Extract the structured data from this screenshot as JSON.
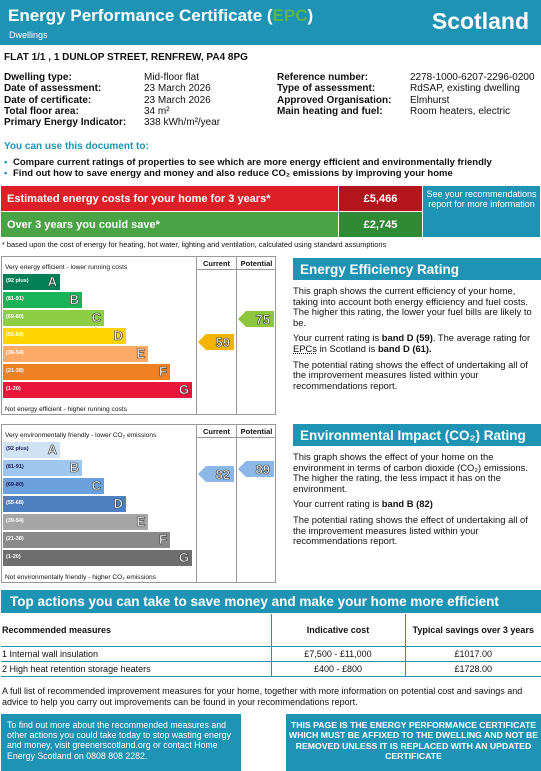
{
  "header": {
    "title_pre": "Energy Performance Certificate (",
    "title_epc": "EPC",
    "title_post": ")",
    "subtitle": "Dwellings",
    "country": "Scotland"
  },
  "address": "FLAT 1/1 , 1 DUNLOP STREET, RENFREW, PA4 8PG",
  "details_left": [
    {
      "label": "Dwelling type:",
      "value": "Mid-floor flat"
    },
    {
      "label": "Date of assessment:",
      "value": "23 March 2026"
    },
    {
      "label": "Date of certificate:",
      "value": "23 March 2026"
    },
    {
      "label": "Total floor area:",
      "value": "34 m²"
    },
    {
      "label": "Primary Energy Indicator:",
      "value": "338 kWh/m²/year"
    }
  ],
  "details_right": [
    {
      "label": "Reference number:",
      "value": "2278-1000-6207-2296-0200"
    },
    {
      "label": "Type of assessment:",
      "value": "RdSAP, existing dwelling"
    },
    {
      "label": "Approved Organisation:",
      "value": "Elmhurst"
    },
    {
      "label": "Main heating and fuel:",
      "value": "Room heaters, electric"
    }
  ],
  "use_doc": {
    "heading": "You can use this document to:",
    "bullets": [
      "Compare current ratings of properties to see which are more energy efficient and environmentally friendly",
      "Find out how to save energy and money and also reduce CO₂ emissions by improving your home"
    ]
  },
  "costs": {
    "estimated_label": "Estimated energy costs for your home for 3 years*",
    "estimated_value": "£5,466",
    "save_label": "Over 3 years you could save*",
    "save_value": "£2,745",
    "see_box": "See your recommendations report for more information",
    "footnote": "* based upon the cost of energy for heating, hot water, lighting and ventilation, calculated using standard assumptions"
  },
  "ee_chart": {
    "top_label": "Very energy efficient - lower running costs",
    "bottom_label": "Not energy efficient - higher running costs",
    "col_current": "Current",
    "col_potential": "Potential",
    "current": "59",
    "potential": "75",
    "current_color": "#f5b400",
    "potential_color": "#8dc63f",
    "bands": [
      {
        "range": "(92 plus)",
        "letter": "A",
        "color": "#008054"
      },
      {
        "range": "(81-91)",
        "letter": "B",
        "color": "#19b459"
      },
      {
        "range": "(69-80)",
        "letter": "C",
        "color": "#8dce46"
      },
      {
        "range": "(55-68)",
        "letter": "D",
        "color": "#ffd500"
      },
      {
        "range": "(39-54)",
        "letter": "E",
        "color": "#fcaa65"
      },
      {
        "range": "(21-38)",
        "letter": "F",
        "color": "#ef8023"
      },
      {
        "range": "(1-20)",
        "letter": "G",
        "color": "#e9153b"
      }
    ]
  },
  "ei_chart": {
    "top_label": "Very environmentally friendly - lower CO₂ emissions",
    "bottom_label": "Not environmentally friendly - higher CO₂ emissions",
    "col_current": "Current",
    "col_potential": "Potential",
    "current": "82",
    "potential": "89",
    "current_color": "#8bb8e6",
    "potential_color": "#8bb8e6",
    "bands": [
      {
        "range": "(92 plus)",
        "letter": "A",
        "color": "#cfe3f5"
      },
      {
        "range": "(81-91)",
        "letter": "B",
        "color": "#9fc6ee"
      },
      {
        "range": "(69-80)",
        "letter": "C",
        "color": "#6aa0db"
      },
      {
        "range": "(55-68)",
        "letter": "D",
        "color": "#4f7fc0"
      },
      {
        "range": "(39-54)",
        "letter": "E",
        "color": "#a6a6a6"
      },
      {
        "range": "(21-38)",
        "letter": "F",
        "color": "#8a8a8a"
      },
      {
        "range": "(1-20)",
        "letter": "G",
        "color": "#6e6e6e"
      }
    ]
  },
  "ee_panel": {
    "heading": "Energy Efficiency Rating",
    "p1": "This graph shows the current efficiency of your home, taking into account both energy efficiency and fuel costs. The higher this rating, the lower your fuel bills are likely to be.",
    "p2_pre": "Your current rating is ",
    "p2_bold1": "band D (59)",
    "p2_mid": ". The average rating for ",
    "p2_epcs": "EPCs",
    "p2_mid2": " in Scotland is ",
    "p2_bold2": "band D (61).",
    "p3": "The potential rating shows the effect of undertaking all of the improvement measures listed within your recommendations report."
  },
  "ei_panel": {
    "heading": "Environmental Impact (CO₂) Rating",
    "p1": "This graph shows the effect of your home on the environment in terms of carbon dioxide (CO₂) emissions. The higher the rating, the less impact it has on the environment.",
    "p2_pre": "Your current rating is ",
    "p2_bold": "band B (82)",
    "p3": "The potential rating shows the effect of undertaking all of the improvement measures listed within your recommendations report."
  },
  "top_actions": {
    "heading": "Top actions you can take to save money and make your home more efficient",
    "col_measures": "Recommended measures",
    "col_cost": "Indicative cost",
    "col_savings": "Typical savings over 3 years",
    "rows": [
      {
        "measure": "1 Internal wall insulation",
        "cost": "£7,500 - £11,000",
        "savings": "£1017.00"
      },
      {
        "measure": "2 High heat retention storage heaters",
        "cost": "£400 - £800",
        "savings": "£1728.00"
      }
    ],
    "full_list": "A full list of recommended improvement measures for your home, together with more information on potential cost and savings and advice to help you carry out improvements can be found in your recommendations report."
  },
  "footer": {
    "left": "To find out more about the recommended measures and other actions you could take today to stop wasting energy and money, visit greenerscotland.org or contact Home Energy Scotland on 0808 808 2282.",
    "right": "THIS PAGE IS THE ENERGY PERFORMANCE CERTIFICATE WHICH MUST BE AFFIXED TO THE DWELLING AND NOT BE REMOVED UNLESS IT IS REPLACED WITH AN UPDATED CERTIFICATE"
  }
}
